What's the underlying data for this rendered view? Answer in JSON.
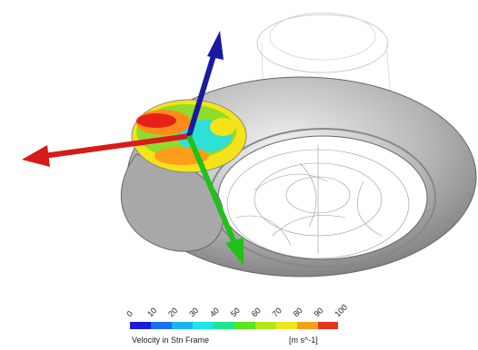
{
  "legend": {
    "ticks": [
      0,
      10,
      20,
      30,
      40,
      50,
      60,
      70,
      80,
      90,
      100
    ],
    "title": "Velocity in Stn Frame",
    "unit": "[m s^-1]"
  }
}
